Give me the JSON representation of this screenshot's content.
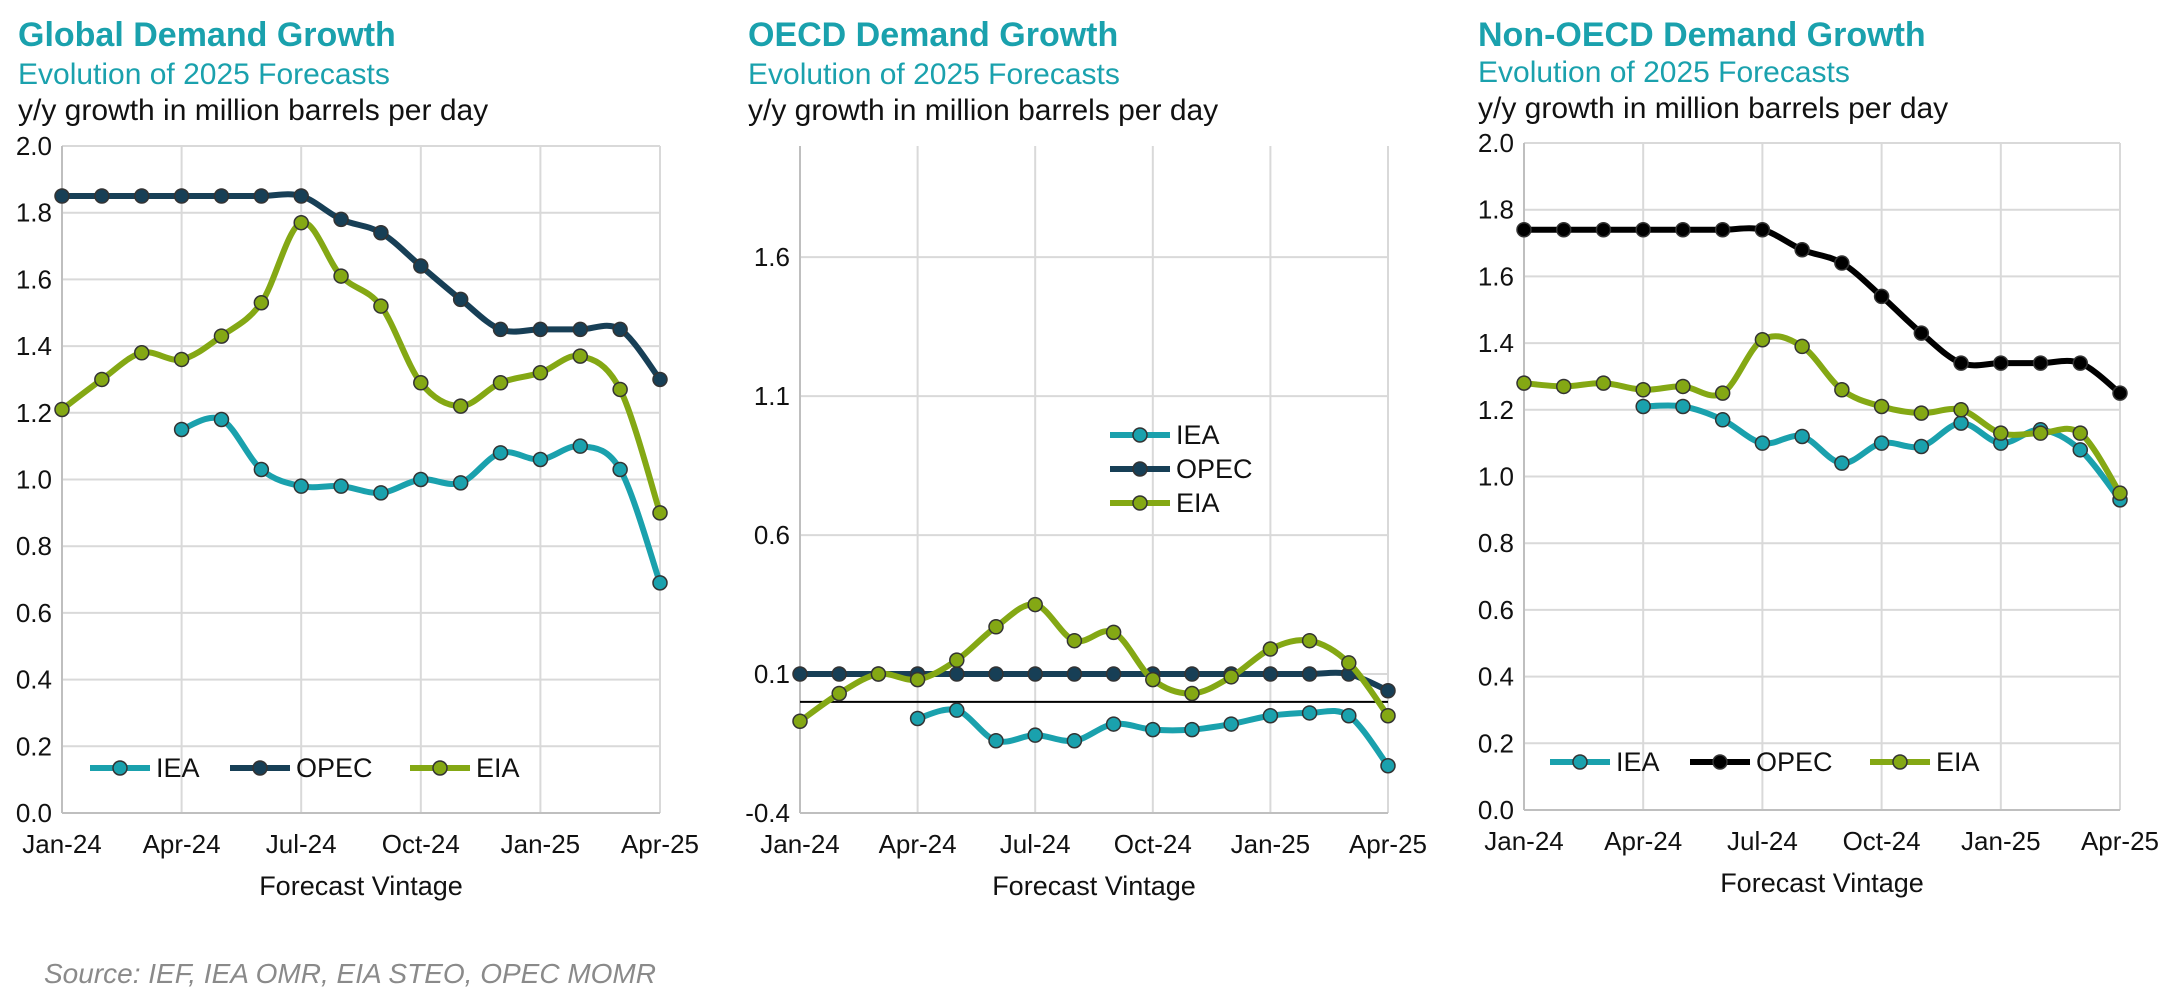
{
  "source": "Source: IEF, IEA OMR, EIA STEO, OPEC MOMR",
  "colors": {
    "IEA": "#1aa1ad",
    "OPEC": "#173f56",
    "EIA": "#84a814",
    "title": "#1aa1ad"
  },
  "chart_data": [
    {
      "type": "line",
      "title": "Global Demand Growth",
      "subtitle": "Evolution of 2025 Forecasts",
      "ylabel": "y/y growth in million barrels per day",
      "xlabel": "Forecast Vintage",
      "x": [
        "Jan-24",
        "Feb-24",
        "Mar-24",
        "Apr-24",
        "May-24",
        "Jun-24",
        "Jul-24",
        "Aug-24",
        "Sep-24",
        "Oct-24",
        "Nov-24",
        "Dec-24",
        "Jan-25",
        "Feb-25",
        "Mar-25",
        "Apr-25"
      ],
      "xticks": [
        "Jan-24",
        "Apr-24",
        "Jul-24",
        "Oct-24",
        "Jan-25",
        "Apr-25"
      ],
      "ylim": [
        0,
        2.0
      ],
      "yticks": [
        "0.0",
        "0.2",
        "0.4",
        "0.6",
        "0.8",
        "1.0",
        "1.2",
        "1.4",
        "1.6",
        "1.8",
        "2.0"
      ],
      "legend": "bottom",
      "series": [
        {
          "name": "IEA",
          "values": [
            null,
            null,
            null,
            1.15,
            1.18,
            1.03,
            0.98,
            0.98,
            0.96,
            1.0,
            0.99,
            1.08,
            1.06,
            1.1,
            1.03,
            0.69
          ]
        },
        {
          "name": "OPEC",
          "values": [
            1.85,
            1.85,
            1.85,
            1.85,
            1.85,
            1.85,
            1.85,
            1.78,
            1.74,
            1.64,
            1.54,
            1.45,
            1.45,
            1.45,
            1.45,
            1.3
          ]
        },
        {
          "name": "EIA",
          "values": [
            1.21,
            1.3,
            1.38,
            1.36,
            1.43,
            1.53,
            1.77,
            1.61,
            1.52,
            1.29,
            1.22,
            1.29,
            1.32,
            1.37,
            1.27,
            0.9
          ]
        }
      ]
    },
    {
      "type": "line",
      "title": "OECD Demand Growth",
      "subtitle": "Evolution of 2025 Forecasts",
      "ylabel": "y/y growth in million barrels per day",
      "xlabel": "Forecast Vintage",
      "x": [
        "Jan-24",
        "Feb-24",
        "Mar-24",
        "Apr-24",
        "May-24",
        "Jun-24",
        "Jul-24",
        "Aug-24",
        "Sep-24",
        "Oct-24",
        "Nov-24",
        "Dec-24",
        "Jan-25",
        "Feb-25",
        "Mar-25",
        "Apr-25"
      ],
      "xticks": [
        "Jan-24",
        "Apr-24",
        "Jul-24",
        "Oct-24",
        "Jan-25",
        "Apr-25"
      ],
      "ylim": [
        -0.4,
        2.0
      ],
      "yticks": [
        "-0.4",
        "0.1",
        "0.6",
        "1.1",
        "1.6"
      ],
      "zero_line": 0,
      "legend": "center-right",
      "series": [
        {
          "name": "IEA",
          "values": [
            null,
            null,
            null,
            -0.06,
            -0.03,
            -0.14,
            -0.12,
            -0.14,
            -0.08,
            -0.1,
            -0.1,
            -0.08,
            -0.05,
            -0.04,
            -0.05,
            -0.23
          ]
        },
        {
          "name": "OPEC",
          "values": [
            0.1,
            0.1,
            0.1,
            0.1,
            0.1,
            0.1,
            0.1,
            0.1,
            0.1,
            0.1,
            0.1,
            0.1,
            0.1,
            0.1,
            0.1,
            0.04
          ]
        },
        {
          "name": "EIA",
          "values": [
            -0.07,
            0.03,
            0.1,
            0.08,
            0.15,
            0.27,
            0.35,
            0.22,
            0.25,
            0.08,
            0.03,
            0.09,
            0.19,
            0.22,
            0.14,
            -0.05
          ]
        }
      ]
    },
    {
      "type": "line",
      "title": "Non-OECD Demand Growth",
      "subtitle": "Evolution of 2025 Forecasts",
      "ylabel": "y/y growth in million barrels per day",
      "xlabel": "Forecast Vintage",
      "x": [
        "Jan-24",
        "Feb-24",
        "Mar-24",
        "Apr-24",
        "May-24",
        "Jun-24",
        "Jul-24",
        "Aug-24",
        "Sep-24",
        "Oct-24",
        "Nov-24",
        "Dec-24",
        "Jan-25",
        "Feb-25",
        "Mar-25",
        "Apr-25"
      ],
      "xticks": [
        "Jan-24",
        "Apr-24",
        "Jul-24",
        "Oct-24",
        "Jan-25",
        "Apr-25"
      ],
      "ylim": [
        0,
        2.0
      ],
      "yticks": [
        "0.0",
        "0.2",
        "0.4",
        "0.6",
        "0.8",
        "1.0",
        "1.2",
        "1.4",
        "1.6",
        "1.8",
        "2.0"
      ],
      "legend": "bottom",
      "series": [
        {
          "name": "IEA",
          "values": [
            null,
            null,
            null,
            1.21,
            1.21,
            1.17,
            1.1,
            1.12,
            1.04,
            1.1,
            1.09,
            1.16,
            1.1,
            1.14,
            1.08,
            0.93
          ]
        },
        {
          "name": "OPEC",
          "values": [
            1.74,
            1.74,
            1.74,
            1.74,
            1.74,
            1.74,
            1.74,
            1.68,
            1.64,
            1.54,
            1.43,
            1.34,
            1.34,
            1.34,
            1.34,
            1.25
          ]
        },
        {
          "name": "EIA",
          "values": [
            1.28,
            1.27,
            1.28,
            1.26,
            1.27,
            1.25,
            1.41,
            1.39,
            1.26,
            1.21,
            1.19,
            1.2,
            1.13,
            1.13,
            1.13,
            0.95
          ]
        }
      ],
      "opec_color": "#000000"
    }
  ]
}
